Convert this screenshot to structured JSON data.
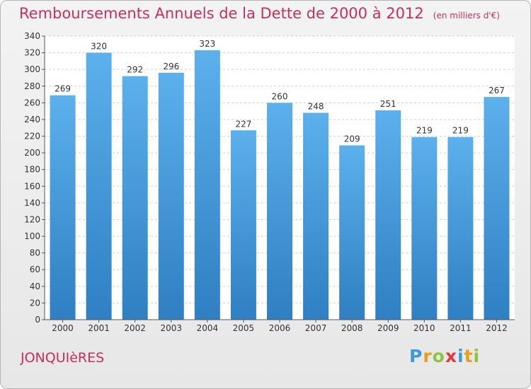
{
  "title": "Remboursements Annuels de la Dette de 2000 à 2012",
  "unit_note": "(en milliers d'€)",
  "city": "JONQUIèRES",
  "logo": {
    "text": "Proxiti",
    "letters": [
      "P",
      "r",
      "o",
      "x",
      "i",
      "t",
      "i"
    ],
    "colors": [
      "#3b9ad9",
      "#e8a01c",
      "#8cc63f",
      "#e23a3a",
      "#3b9ad9",
      "#e8a01c",
      "#8cc63f"
    ]
  },
  "colors": {
    "accent": "#c5305f",
    "bar_top": "#5cb0ec",
    "bar_bottom": "#2f7fc2"
  },
  "chart_data": {
    "type": "bar",
    "title": "Remboursements Annuels de la Dette de 2000 à 2012",
    "categories": [
      "2000",
      "2001",
      "2002",
      "2003",
      "2004",
      "2005",
      "2006",
      "2007",
      "2008",
      "2009",
      "2010",
      "2011",
      "2012"
    ],
    "values": [
      269,
      320,
      292,
      296,
      323,
      227,
      260,
      248,
      209,
      251,
      219,
      219,
      267
    ],
    "ylim": [
      0,
      340
    ],
    "yticks": [
      0,
      20,
      40,
      60,
      80,
      100,
      120,
      140,
      160,
      180,
      200,
      220,
      240,
      260,
      280,
      300,
      320,
      340
    ],
    "grid": true,
    "data_labels": true
  }
}
